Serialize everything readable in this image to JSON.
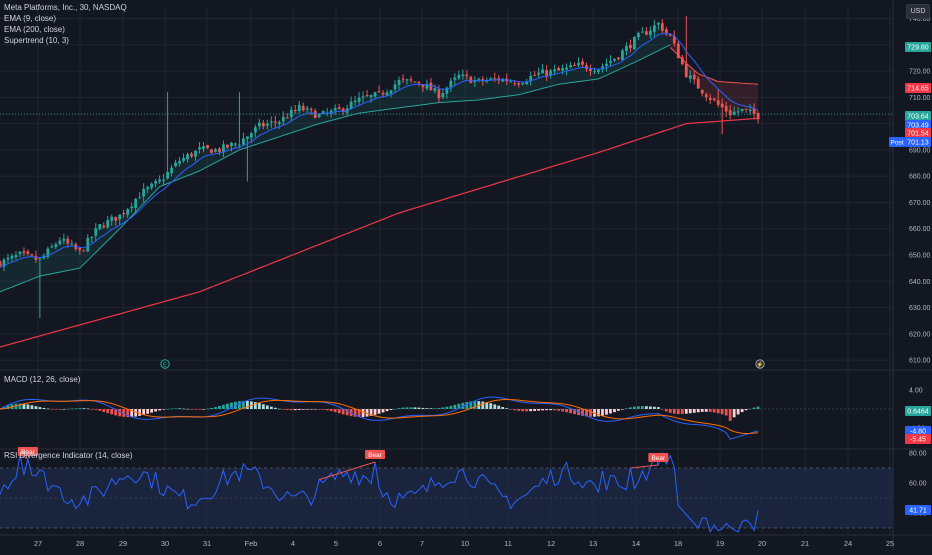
{
  "legend": {
    "symbol": "Meta Platforms, Inc., 30, NASDAQ",
    "ema9": "EMA (9, close)",
    "ema200": "EMA (200, close)",
    "supertrend": "Supertrend (10, 3)",
    "macd": "MACD (12, 26, close)",
    "rsi": "RSI Divergence Indicator (14, close)"
  },
  "currency_button": "USD",
  "colors": {
    "background": "#131722",
    "up": "#26a69a",
    "down": "#ef5350",
    "ema9": "#2962ff",
    "ema200": "#f23645",
    "macd_line": "#2962ff",
    "signal_line": "#ff6d00",
    "rsi_line": "#2962ff",
    "rsi_band": "#1e2a45"
  },
  "event_markers": {
    "earnings": "E",
    "dividend": "⚡"
  },
  "chart_data": [
    {
      "type": "candlestick",
      "panel": "price",
      "x_ticks": [
        "27",
        "28",
        "29",
        "30",
        "31",
        "Feb",
        "4",
        "5",
        "6",
        "7",
        "10",
        "11",
        "12",
        "13",
        "14",
        "18",
        "19",
        "20",
        "21",
        "24",
        "25"
      ],
      "y_ticks": [
        610,
        620,
        630,
        640,
        650,
        660,
        670,
        680,
        690,
        700,
        710,
        720,
        730,
        740
      ],
      "ylim": [
        607,
        744
      ],
      "price_labels": [
        {
          "name": "high-line",
          "value": 729.8,
          "text": "729.80",
          "color": "#26a69a"
        },
        {
          "name": "supertrend-level",
          "value": 714.65,
          "text": "714.65",
          "color": "#f23645"
        },
        {
          "name": "last-price",
          "value": 703.64,
          "text": "703.64",
          "color": "#26a69a"
        },
        {
          "name": "ema9-level",
          "value": 703.49,
          "text": "703.49",
          "color": "#2962ff"
        },
        {
          "name": "ema200-level",
          "value": 701.54,
          "text": "701.54",
          "color": "#f23645"
        },
        {
          "name": "post-market",
          "value": 701.13,
          "text": "701.13",
          "color": "#2962ff",
          "tag": "Post"
        }
      ],
      "anchors": [
        [
          0,
          647
        ],
        [
          5,
          650
        ],
        [
          10,
          648
        ],
        [
          15,
          656
        ],
        [
          20,
          651
        ],
        [
          25,
          661
        ],
        [
          30,
          665
        ],
        [
          35,
          673
        ],
        [
          40,
          678
        ],
        [
          45,
          686
        ],
        [
          50,
          690
        ],
        [
          55,
          690
        ],
        [
          60,
          693
        ],
        [
          65,
          699
        ],
        [
          70,
          701
        ],
        [
          75,
          706
        ],
        [
          80,
          703
        ],
        [
          85,
          705
        ],
        [
          90,
          709
        ],
        [
          95,
          711
        ],
        [
          100,
          716
        ],
        [
          105,
          716
        ],
        [
          110,
          711
        ],
        [
          115,
          718
        ],
        [
          120,
          716
        ],
        [
          125,
          717
        ],
        [
          130,
          716
        ],
        [
          135,
          719
        ],
        [
          140,
          720
        ],
        [
          145,
          722
        ],
        [
          150,
          721
        ],
        [
          155,
          726
        ],
        [
          160,
          733
        ],
        [
          165,
          738
        ],
        [
          168,
          733
        ],
        [
          172,
          719
        ],
        [
          175,
          714
        ],
        [
          180,
          707
        ],
        [
          183,
          704
        ],
        [
          186,
          705
        ],
        [
          190,
          703
        ]
      ],
      "ema200": [
        [
          0,
          615
        ],
        [
          50,
          636
        ],
        [
          100,
          666
        ],
        [
          150,
          689
        ],
        [
          172,
          700
        ],
        [
          190,
          702
        ]
      ],
      "supertrend_up": [
        [
          0,
          636
        ],
        [
          10,
          642
        ],
        [
          20,
          645
        ],
        [
          30,
          660
        ],
        [
          40,
          676
        ],
        [
          50,
          682
        ],
        [
          60,
          690
        ],
        [
          70,
          695
        ],
        [
          80,
          700
        ],
        [
          90,
          704
        ],
        [
          100,
          706
        ],
        [
          110,
          708
        ],
        [
          120,
          709
        ],
        [
          130,
          711
        ],
        [
          140,
          715
        ],
        [
          150,
          717
        ],
        [
          160,
          724
        ],
        [
          168,
          730
        ]
      ],
      "supertrend_down": [
        [
          168,
          729
        ],
        [
          172,
          723
        ],
        [
          175,
          719
        ],
        [
          180,
          716
        ],
        [
          190,
          715
        ]
      ]
    },
    {
      "type": "bar+line",
      "panel": "macd",
      "y_ticks": [
        -4.0,
        4.0
      ],
      "ylim": [
        -8,
        8
      ],
      "value_labels": [
        {
          "name": "histogram",
          "value": 0.6464,
          "text": "0.6464",
          "color": "#26a69a"
        },
        {
          "name": "macd",
          "value": -4.8,
          "text": "-4.80",
          "color": "#2962ff"
        },
        {
          "name": "signal",
          "value": -5.45,
          "text": "-5.45",
          "color": "#f23645"
        }
      ]
    },
    {
      "type": "line",
      "panel": "rsi",
      "y_ticks": [
        40.0,
        60.0,
        80.0
      ],
      "ylim": [
        26,
        82
      ],
      "band": [
        30,
        70
      ],
      "last_value": {
        "value": 41.71,
        "text": "41.71"
      },
      "divergences": [
        {
          "label": "Bear",
          "from_bar": 5,
          "to_bar": 7
        },
        {
          "label": "Bear",
          "from_bar": 80,
          "to_bar": 94
        },
        {
          "label": "Bear",
          "from_bar": 158,
          "to_bar": 165
        }
      ]
    }
  ]
}
